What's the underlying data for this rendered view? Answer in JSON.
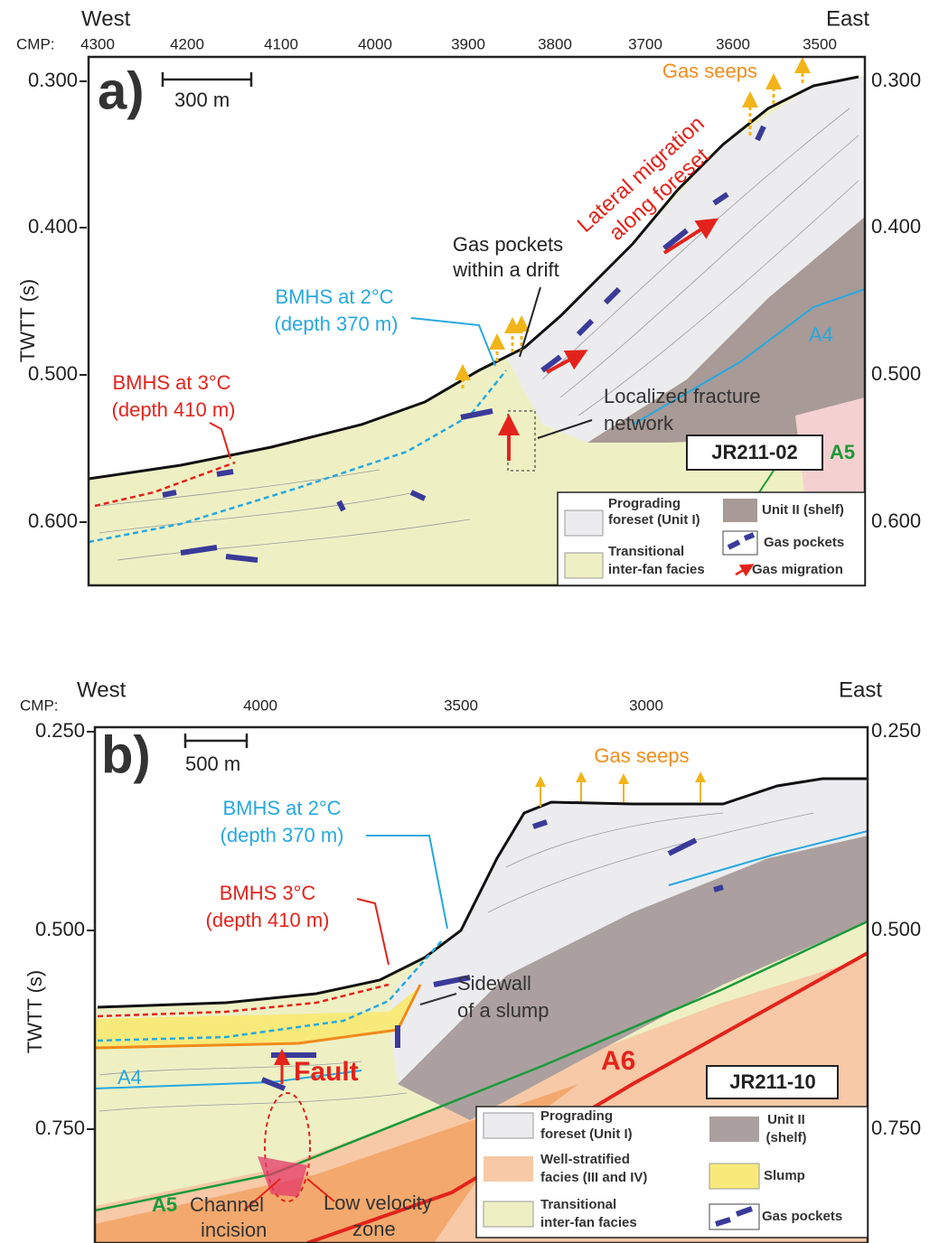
{
  "panel_a": {
    "label": "a)",
    "west": "West",
    "east": "East",
    "cmp_label": "CMP:",
    "cmp_ticks": [
      "4300",
      "4200",
      "4100",
      "4000",
      "3900",
      "3800",
      "3700",
      "3600",
      "3500"
    ],
    "axis_title": "TWTT (s)",
    "left_ticks": [
      "0.300",
      "0.400",
      "0.500",
      "0.600"
    ],
    "right_ticks": [
      "0.300",
      "0.400",
      "0.500",
      "0.600"
    ],
    "scale_bar": "300 m",
    "line_id": "JR211-02",
    "annotations": {
      "gas_seeps": "Gas seeps",
      "lateral_migration": [
        "Lateral migration",
        "along foreset"
      ],
      "gas_pockets_drift": [
        "Gas pockets",
        "within a drift"
      ],
      "bmhs2": [
        "BMHS at 2°C",
        "(depth 370 m)"
      ],
      "bmhs3": [
        "BMHS at 3°C",
        "(depth 410 m)"
      ],
      "fracture": [
        "Localized fracture",
        "network"
      ],
      "a4": "A4",
      "a5": "A5"
    },
    "legend": {
      "prograding": [
        "Prograding",
        "foreset (Unit I)"
      ],
      "unit2": "Unit II (shelf)",
      "transitional": [
        "Transitional",
        "inter-fan facies"
      ],
      "gas_pockets": "Gas pockets",
      "gas_migration": "Gas migration"
    }
  },
  "panel_b": {
    "label": "b)",
    "west": "West",
    "east": "East",
    "cmp_label": "CMP:",
    "cmp_ticks": [
      "4000",
      "3500",
      "3000"
    ],
    "axis_title": "TWTT (s)",
    "left_ticks": [
      "0.250",
      "0.500",
      "0.750"
    ],
    "right_ticks": [
      "0.250",
      "0.500",
      "0.750"
    ],
    "scale_bar": "500 m",
    "line_id": "JR211-10",
    "annotations": {
      "gas_seeps": "Gas seeps",
      "bmhs2": [
        "BMHS at 2°C",
        "(depth 370 m)"
      ],
      "bmhs3": [
        "BMHS 3°C",
        "(depth 410 m)"
      ],
      "sidewall": [
        "Sidewall",
        "of a slump"
      ],
      "fault": "Fault",
      "a4": "A4",
      "a5": "A5",
      "a6": "A6",
      "channel": [
        "Channel",
        "incision"
      ],
      "low_velocity": [
        "Low velocity",
        "zone"
      ]
    },
    "legend": {
      "prograding": [
        "Prograding",
        "foreset (Unit I)"
      ],
      "unit2": [
        "Unit II",
        "(shelf)"
      ],
      "well_stratified": [
        "Well-stratified",
        "facies (III and IV)"
      ],
      "slump": "Slump",
      "transitional": [
        "Transitional",
        "inter-fan facies"
      ],
      "gas_pockets": "Gas pockets"
    }
  }
}
